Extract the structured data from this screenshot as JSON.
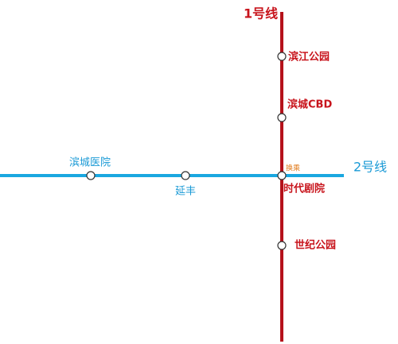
{
  "lines": [
    {
      "name": "1号线",
      "stations": [
        "滨江公园",
        "滨城CBD",
        "时代剧院",
        "世纪公园"
      ]
    },
    {
      "name": "2号线",
      "stations": [
        "滨城医院",
        "延丰",
        "时代剧院"
      ]
    }
  ],
  "transfer_label": "换乘"
}
